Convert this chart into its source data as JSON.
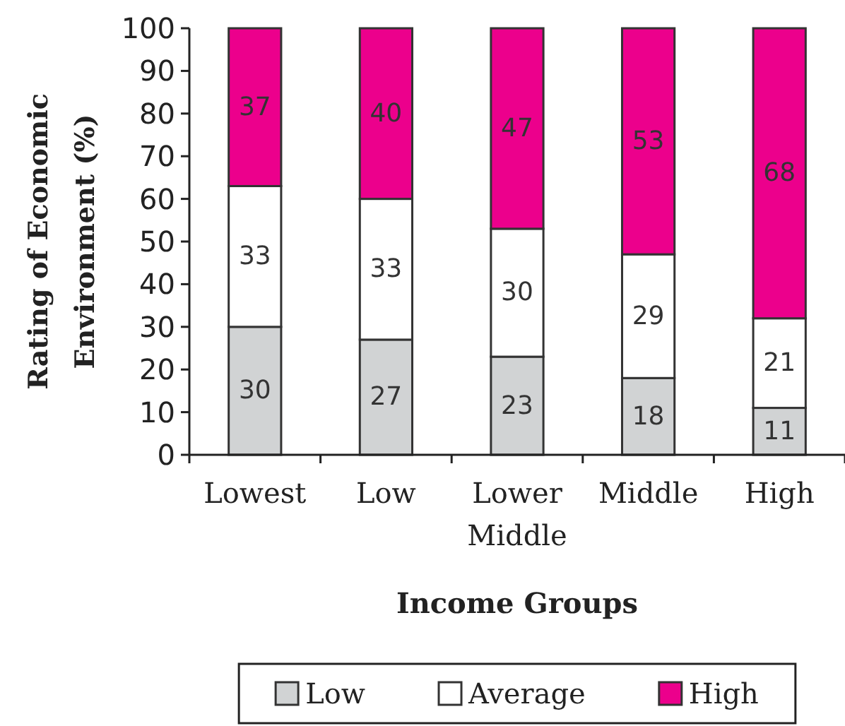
{
  "chart_data": {
    "type": "bar",
    "stacked": true,
    "xlabel": "Income Groups",
    "ylabel": "Rating of Economic Environment (%)",
    "categories": [
      "Lowest",
      "Low",
      "Lower Middle",
      "Middle",
      "High"
    ],
    "series": [
      {
        "name": "Low",
        "color": "#d1d3d4",
        "values": [
          30,
          27,
          23,
          18,
          11
        ]
      },
      {
        "name": "Average",
        "color": "#ffffff",
        "values": [
          33,
          33,
          30,
          29,
          21
        ]
      },
      {
        "name": "High",
        "color": "#ec008c",
        "values": [
          37,
          40,
          47,
          53,
          68
        ]
      }
    ],
    "ylim": [
      0,
      100
    ],
    "yticks": [
      0,
      10,
      20,
      30,
      40,
      50,
      60,
      70,
      80,
      90,
      100
    ],
    "data_labels": true,
    "legend": "bottom"
  }
}
